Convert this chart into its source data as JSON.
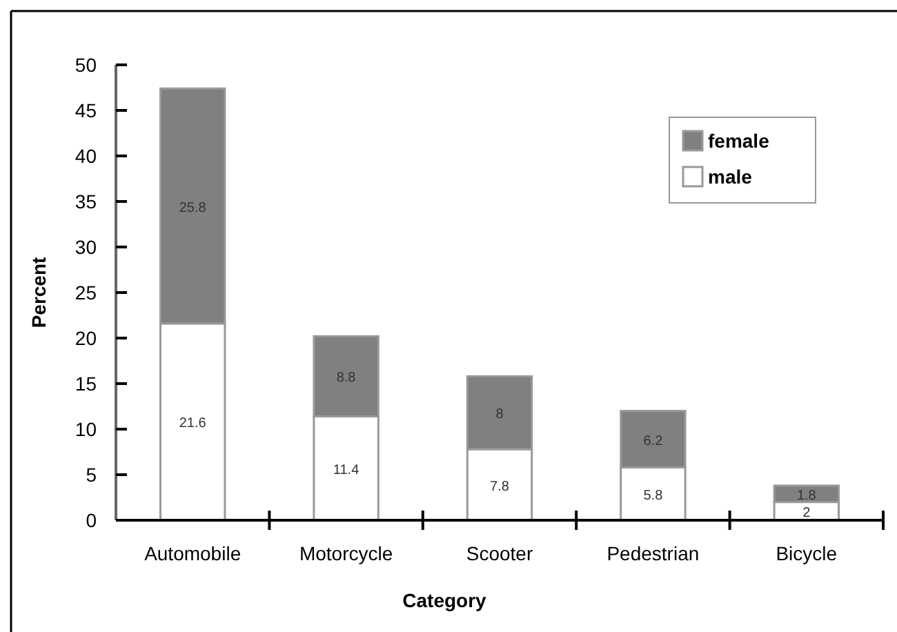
{
  "chart_data": {
    "type": "bar",
    "xlabel": "Category",
    "ylabel": "Percent",
    "categories": [
      "Automobile",
      "Motorcycle",
      "Scooter",
      "Pedestrian",
      "Bicycle"
    ],
    "series": [
      {
        "name": "male",
        "color": "#ffffff",
        "values": [
          21.6,
          11.4,
          7.8,
          5.8,
          2
        ]
      },
      {
        "name": "female",
        "color": "#808080",
        "values": [
          25.8,
          8.8,
          8,
          6.2,
          1.8
        ]
      }
    ],
    "stacked": true,
    "ylim": [
      0,
      50
    ],
    "yticks": [
      0,
      5,
      10,
      15,
      20,
      25,
      30,
      35,
      40,
      45,
      50
    ],
    "data_labels": true,
    "grid": false,
    "legend": "top right"
  }
}
